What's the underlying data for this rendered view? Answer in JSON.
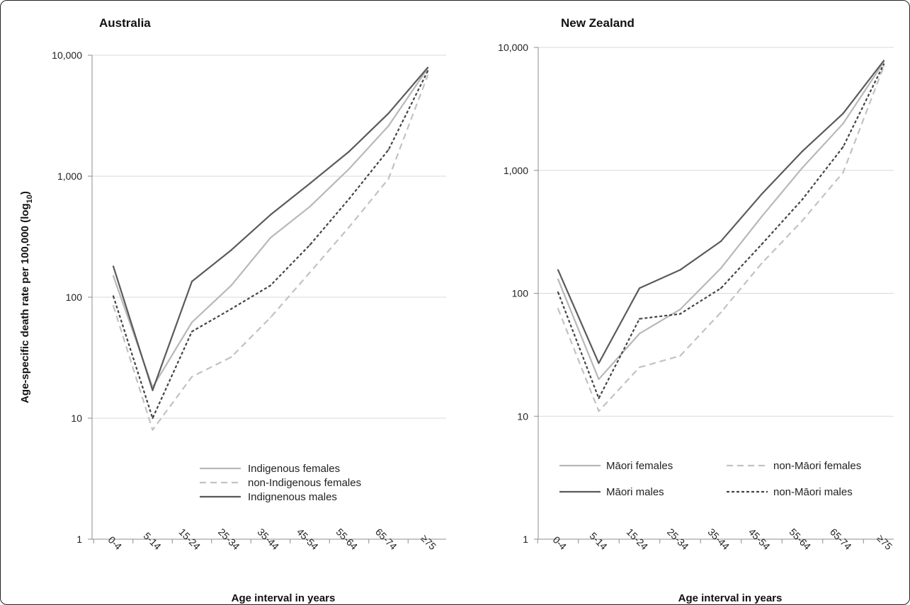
{
  "chart_data": [
    {
      "type": "line",
      "title": "Australia",
      "xlabel": "Age interval in years",
      "ylabel": "Age-specific death rate per 100,000 (log10)",
      "yscale": "log",
      "ylim": [
        1,
        10000
      ],
      "yticks": [
        "1",
        "10",
        "100",
        "1,000",
        "10,000"
      ],
      "grid": true,
      "legend_position": "lower-right",
      "categories": [
        "0-4",
        "5-14",
        "15-24",
        "25-34",
        "35-44",
        "45-54",
        "55-64",
        "65-74",
        "≥75"
      ],
      "series": [
        {
          "name": "Indigenous females",
          "color": "#b8b8b8",
          "dash": "solid",
          "legend": true,
          "values": [
            150,
            18,
            62,
            125,
            310,
            560,
            1150,
            2600,
            7800
          ]
        },
        {
          "name": "non-Indigenous females",
          "color": "#c2c2c2",
          "dash": "dashed",
          "legend": true,
          "values": [
            85,
            8,
            22,
            32,
            68,
            160,
            380,
            950,
            6800
          ]
        },
        {
          "name": "Indignenous males",
          "color": "#5a5a5a",
          "dash": "solid",
          "legend": true,
          "values": [
            180,
            17,
            135,
            245,
            480,
            870,
            1600,
            3300,
            7900
          ]
        },
        {
          "name": "",
          "color": "#444444",
          "dash": "dotted",
          "legend": false,
          "values": [
            102,
            10,
            52,
            80,
            125,
            270,
            650,
            1650,
            7400
          ]
        }
      ]
    },
    {
      "type": "line",
      "title": "New Zealand",
      "xlabel": "Age interval in years",
      "ylabel": "",
      "yscale": "log",
      "ylim": [
        1,
        10000
      ],
      "yticks": [
        "1",
        "10",
        "100",
        "1,000",
        "10,000"
      ],
      "grid": true,
      "legend_position": "bottom",
      "categories": [
        "0-4",
        "5-14",
        "15-24",
        "25-34",
        "35-44",
        "45-54",
        "55-64",
        "65-74",
        "≥75"
      ],
      "series": [
        {
          "name": "Māori females",
          "color": "#b8b8b8",
          "dash": "solid",
          "values": [
            130,
            20,
            47,
            74,
            160,
            420,
            1050,
            2400,
            7600
          ]
        },
        {
          "name": "non-Māori females",
          "color": "#c2c2c2",
          "dash": "dashed",
          "values": [
            75,
            11,
            25,
            31,
            70,
            175,
            390,
            960,
            7000
          ]
        },
        {
          "name": "Māori males",
          "color": "#5a5a5a",
          "dash": "solid",
          "values": [
            155,
            27,
            110,
            155,
            265,
            640,
            1430,
            2900,
            7800
          ]
        },
        {
          "name": "non-Māori males",
          "color": "#444444",
          "dash": "dotted",
          "values": [
            102,
            14,
            62,
            68,
            110,
            250,
            580,
            1550,
            7300
          ]
        }
      ]
    }
  ]
}
